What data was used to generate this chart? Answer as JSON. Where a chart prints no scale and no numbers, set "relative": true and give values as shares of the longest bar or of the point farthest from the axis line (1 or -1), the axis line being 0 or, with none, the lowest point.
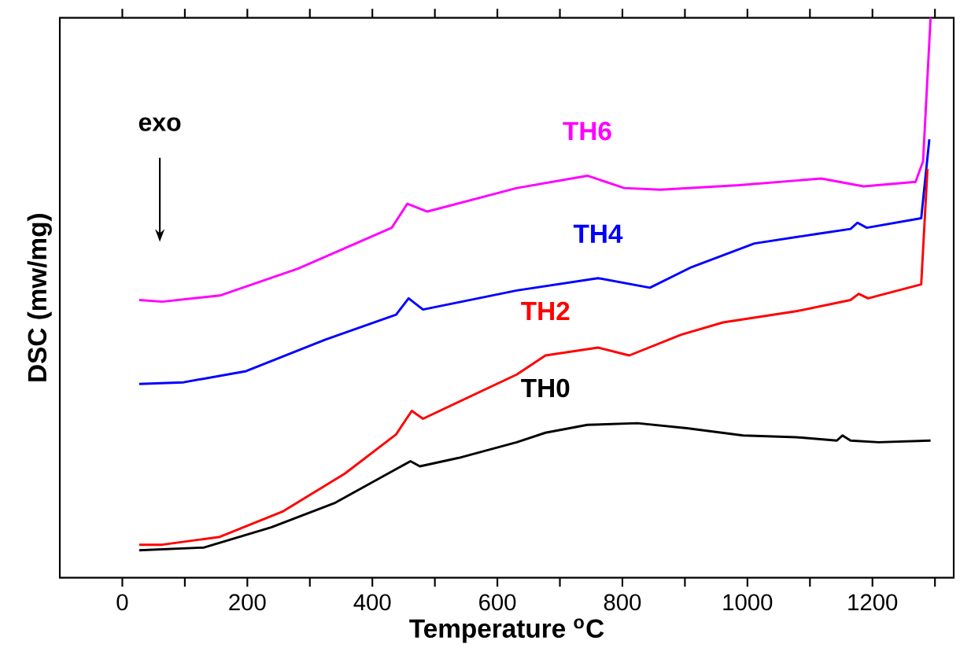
{
  "chart_data": {
    "type": "line",
    "relative": true,
    "xlabel": "Temperature $^{o}$C",
    "ylabel": "DSC (mw/mg)",
    "annotations": [
      "exo"
    ],
    "xlim": [
      -100,
      1330
    ],
    "xticks": [
      0,
      {
        "value": 100,
        "label": null
      },
      200,
      {
        "value": 300,
        "label": null
      },
      400,
      {
        "value": 500,
        "label": null
      },
      600,
      {
        "value": 700,
        "label": null
      },
      800,
      {
        "value": 900,
        "label": null
      },
      1000,
      {
        "value": 1100,
        "label": null
      },
      1200,
      {
        "value": 1300,
        "label": null
      }
    ],
    "tick_labels": "x",
    "grid": false,
    "legend": false,
    "marker": "none",
    "line_style": "solid",
    "series": [
      {
        "name": "TH6",
        "color": "#ff00ff",
        "x": [
          27,
          64,
          156,
          281,
          431,
          456,
          488,
          631,
          744,
          803,
          861,
          986,
          1118,
          1186,
          1269,
          1281,
          1293
        ],
        "values": [
          0.496,
          0.493,
          0.504,
          0.552,
          0.625,
          0.668,
          0.654,
          0.696,
          0.718,
          0.696,
          0.693,
          0.701,
          0.713,
          0.699,
          0.707,
          0.744,
          1.0
        ]
      },
      {
        "name": "TH4",
        "color": "#0000ff",
        "x": [
          27,
          98,
          198,
          324,
          438,
          458,
          481,
          631,
          761,
          844,
          911,
          1011,
          1111,
          1165,
          1176,
          1191,
          1278,
          1291
        ],
        "values": [
          0.346,
          0.349,
          0.369,
          0.425,
          0.47,
          0.499,
          0.479,
          0.513,
          0.535,
          0.518,
          0.555,
          0.597,
          0.614,
          0.623,
          0.634,
          0.625,
          0.642,
          0.783
        ]
      },
      {
        "name": "TH2",
        "color": "#ff0000",
        "x": [
          27,
          64,
          156,
          256,
          356,
          438,
          463,
          481,
          631,
          677,
          761,
          811,
          894,
          961,
          1078,
          1165,
          1178,
          1193,
          1278,
          1288
        ],
        "values": [
          0.059,
          0.059,
          0.073,
          0.118,
          0.186,
          0.256,
          0.298,
          0.284,
          0.363,
          0.397,
          0.411,
          0.397,
          0.434,
          0.456,
          0.476,
          0.496,
          0.507,
          0.499,
          0.524,
          0.73
        ]
      },
      {
        "name": "TH0",
        "color": "#000000",
        "x": [
          27,
          131,
          238,
          339,
          438,
          461,
          476,
          538,
          631,
          677,
          744,
          824,
          903,
          993,
          1078,
          1143,
          1152,
          1165,
          1210,
          1293
        ],
        "values": [
          0.049,
          0.054,
          0.09,
          0.133,
          0.194,
          0.208,
          0.199,
          0.214,
          0.242,
          0.259,
          0.273,
          0.276,
          0.267,
          0.254,
          0.251,
          0.245,
          0.254,
          0.245,
          0.242,
          0.245
        ]
      }
    ]
  }
}
